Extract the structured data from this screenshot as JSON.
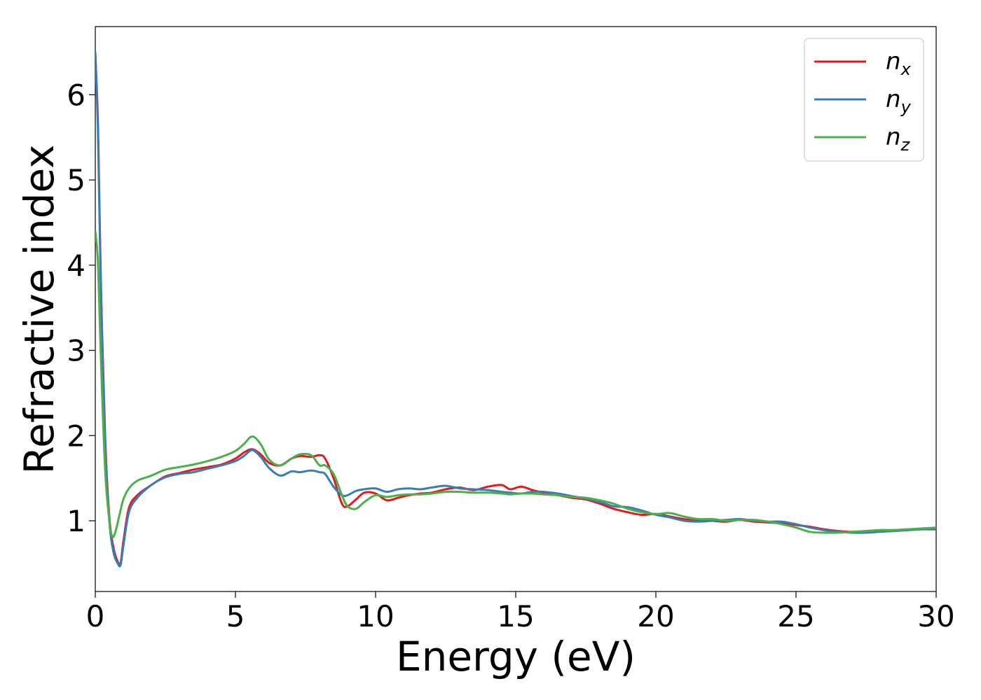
{
  "chart_data": {
    "type": "line",
    "xlabel": "Energy (eV)",
    "ylabel": "Refractive index",
    "xlim": [
      0,
      30
    ],
    "ylim": [
      0.17,
      6.8
    ],
    "xticks": [
      0,
      5,
      10,
      15,
      20,
      25,
      30
    ],
    "yticks": [
      1,
      2,
      3,
      4,
      5,
      6
    ],
    "grid": false,
    "legend_position": "top-right",
    "series": [
      {
        "name": "n_x",
        "label_base": "n",
        "label_sub": "x",
        "color": "#e41a1c",
        "x": [
          0,
          0.1,
          0.2,
          0.35,
          0.5,
          0.65,
          0.8,
          0.9,
          1.0,
          1.2,
          1.5,
          2.0,
          2.5,
          3.0,
          3.5,
          4.0,
          4.5,
          5.0,
          5.3,
          5.6,
          5.9,
          6.2,
          6.6,
          7.0,
          7.3,
          7.7,
          8.0,
          8.2,
          8.5,
          8.8,
          9.0,
          9.3,
          9.6,
          10.0,
          10.4,
          10.8,
          11.2,
          11.6,
          12.0,
          12.5,
          13.0,
          13.5,
          14.0,
          14.5,
          14.8,
          15.2,
          15.6,
          16.0,
          16.5,
          17.0,
          17.5,
          18.0,
          18.5,
          19.0,
          19.5,
          20.0,
          20.5,
          21.0,
          21.5,
          22.0,
          22.5,
          23.0,
          23.5,
          24.0,
          24.5,
          25.0,
          25.5,
          26.0,
          26.5,
          27.0,
          27.5,
          28.0,
          28.5,
          29.0,
          29.5,
          30.0
        ],
        "values": [
          6.5,
          5.6,
          3.8,
          2.0,
          1.05,
          0.68,
          0.52,
          0.5,
          0.75,
          1.15,
          1.3,
          1.42,
          1.52,
          1.56,
          1.6,
          1.63,
          1.66,
          1.73,
          1.8,
          1.84,
          1.78,
          1.68,
          1.65,
          1.73,
          1.76,
          1.75,
          1.77,
          1.73,
          1.5,
          1.2,
          1.17,
          1.25,
          1.33,
          1.32,
          1.24,
          1.27,
          1.3,
          1.32,
          1.33,
          1.37,
          1.39,
          1.36,
          1.4,
          1.42,
          1.37,
          1.4,
          1.36,
          1.33,
          1.3,
          1.27,
          1.25,
          1.2,
          1.14,
          1.1,
          1.07,
          1.08,
          1.05,
          1.02,
          1.0,
          1.0,
          0.99,
          1.01,
          0.99,
          0.98,
          0.97,
          0.95,
          0.93,
          0.9,
          0.88,
          0.87,
          0.88,
          0.89,
          0.89,
          0.9,
          0.9,
          0.9
        ]
      },
      {
        "name": "n_y",
        "label_base": "n",
        "label_sub": "y",
        "color": "#377eb8",
        "x": [
          0,
          0.1,
          0.2,
          0.35,
          0.5,
          0.65,
          0.8,
          0.9,
          1.0,
          1.2,
          1.5,
          2.0,
          2.5,
          3.0,
          3.5,
          4.0,
          4.5,
          5.0,
          5.3,
          5.6,
          5.9,
          6.2,
          6.6,
          7.0,
          7.3,
          7.7,
          8.0,
          8.2,
          8.5,
          8.8,
          9.0,
          9.3,
          9.6,
          10.0,
          10.4,
          10.8,
          11.2,
          11.6,
          12.0,
          12.5,
          13.0,
          13.5,
          14.0,
          14.5,
          14.8,
          15.2,
          15.6,
          16.0,
          16.5,
          17.0,
          17.5,
          18.0,
          18.5,
          19.0,
          19.5,
          20.0,
          20.5,
          21.0,
          21.5,
          22.0,
          22.5,
          23.0,
          23.5,
          24.0,
          24.5,
          25.0,
          25.5,
          26.0,
          26.5,
          27.0,
          27.5,
          28.0,
          28.5,
          29.0,
          29.5,
          30.0
        ],
        "values": [
          6.5,
          5.5,
          3.7,
          1.9,
          1.0,
          0.63,
          0.5,
          0.48,
          0.7,
          1.1,
          1.27,
          1.42,
          1.51,
          1.55,
          1.57,
          1.61,
          1.65,
          1.7,
          1.76,
          1.83,
          1.75,
          1.62,
          1.53,
          1.58,
          1.57,
          1.59,
          1.57,
          1.55,
          1.4,
          1.3,
          1.3,
          1.35,
          1.37,
          1.38,
          1.34,
          1.37,
          1.38,
          1.37,
          1.39,
          1.41,
          1.38,
          1.37,
          1.36,
          1.34,
          1.33,
          1.32,
          1.34,
          1.34,
          1.32,
          1.29,
          1.26,
          1.22,
          1.17,
          1.16,
          1.12,
          1.07,
          1.04,
          1.0,
          0.99,
          1.0,
          1.01,
          1.02,
          1.0,
          0.99,
          0.99,
          0.96,
          0.92,
          0.89,
          0.87,
          0.86,
          0.86,
          0.87,
          0.88,
          0.89,
          0.9,
          0.91
        ]
      },
      {
        "name": "n_z",
        "label_base": "n",
        "label_sub": "z",
        "color": "#4daf4a",
        "x": [
          0,
          0.1,
          0.2,
          0.35,
          0.5,
          0.6,
          0.7,
          0.85,
          1.0,
          1.2,
          1.5,
          2.0,
          2.5,
          3.0,
          3.5,
          4.0,
          4.5,
          5.0,
          5.3,
          5.6,
          5.9,
          6.2,
          6.6,
          7.0,
          7.3,
          7.7,
          8.0,
          8.2,
          8.5,
          8.8,
          9.0,
          9.3,
          9.6,
          10.0,
          10.4,
          10.8,
          11.2,
          11.6,
          12.0,
          12.5,
          13.0,
          13.5,
          14.0,
          14.5,
          14.8,
          15.2,
          15.6,
          16.0,
          16.5,
          17.0,
          17.5,
          18.0,
          18.5,
          19.0,
          19.5,
          20.0,
          20.5,
          21.0,
          21.5,
          22.0,
          22.5,
          23.0,
          23.5,
          24.0,
          24.5,
          25.0,
          25.5,
          26.0,
          26.5,
          27.0,
          27.5,
          28.0,
          28.5,
          29.0,
          29.5,
          30.0
        ],
        "values": [
          4.4,
          4.0,
          2.9,
          1.6,
          1.0,
          0.82,
          0.85,
          1.05,
          1.25,
          1.38,
          1.47,
          1.53,
          1.6,
          1.63,
          1.66,
          1.7,
          1.75,
          1.82,
          1.9,
          1.99,
          1.9,
          1.72,
          1.65,
          1.73,
          1.78,
          1.77,
          1.65,
          1.65,
          1.55,
          1.3,
          1.17,
          1.14,
          1.22,
          1.3,
          1.28,
          1.3,
          1.31,
          1.31,
          1.32,
          1.34,
          1.34,
          1.33,
          1.33,
          1.32,
          1.31,
          1.32,
          1.32,
          1.31,
          1.3,
          1.28,
          1.27,
          1.24,
          1.2,
          1.14,
          1.1,
          1.08,
          1.09,
          1.05,
          1.02,
          1.02,
          1.0,
          1.01,
          1.01,
          0.99,
          0.96,
          0.92,
          0.87,
          0.86,
          0.86,
          0.87,
          0.88,
          0.89,
          0.89,
          0.9,
          0.91,
          0.92
        ]
      }
    ]
  }
}
